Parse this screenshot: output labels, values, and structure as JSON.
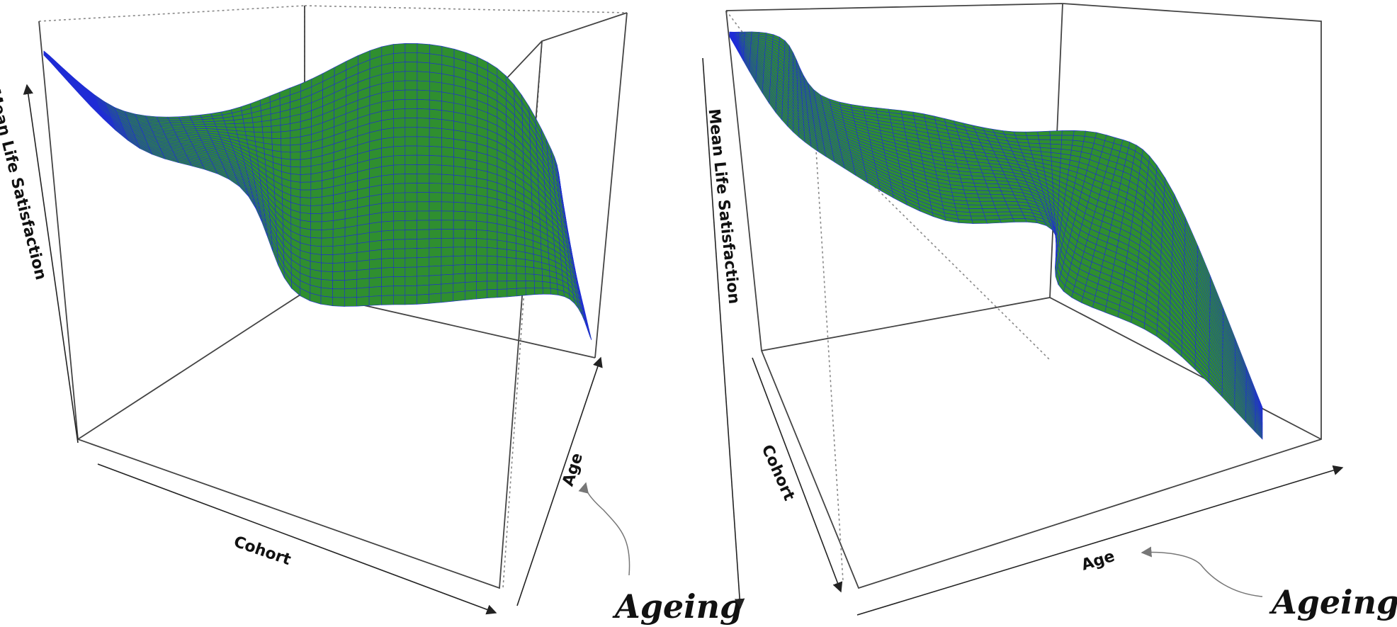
{
  "chart_data": [
    {
      "type": "surface",
      "panel": "left",
      "axes": {
        "x": "Cohort",
        "y": "Age",
        "z": "Mean Life Satisfaction"
      },
      "grid": false,
      "annotation": {
        "text": "Ageing",
        "points_to": "Age"
      }
    },
    {
      "type": "surface",
      "panel": "right",
      "axes": {
        "x": "Cohort",
        "y": "Age",
        "z": "Mean Life Satisfaction"
      },
      "grid": false,
      "annotation": {
        "text": "Ageing",
        "points_to": "Age"
      }
    }
  ],
  "colors": {
    "surface_fill": "#2f8f2f",
    "surface_edge": "#1f2bd8",
    "box": "#444444",
    "hidden_edge": "#888888"
  }
}
